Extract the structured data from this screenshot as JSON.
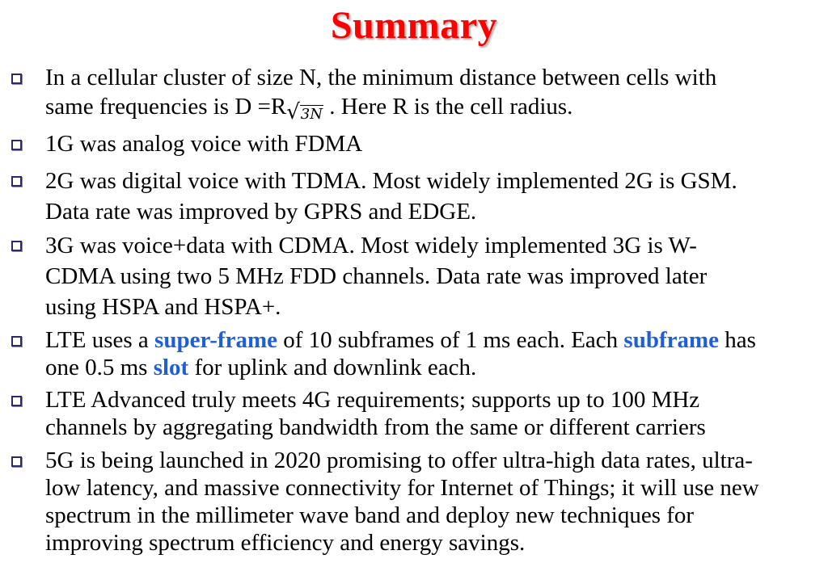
{
  "slide": {
    "title": "Summary",
    "title_color": "#ff0000",
    "highlight_color": "#1f5fd6",
    "bullet_icon": "hollow-square-bullet-icon"
  },
  "bullets": [
    {
      "line1": "In a cellular cluster of size N, the minimum distance between cells with",
      "line2_before": "same frequencies is D =R",
      "formula_radical": "√",
      "formula_radicand": "3N",
      "line2_after": " . Here R is the cell radius."
    },
    {
      "line1": "1G was analog voice with FDMA"
    },
    {
      "line1": "2G was digital voice with TDMA. Most widely implemented 2G is GSM.",
      "line2": "Data rate was improved by GPRS and EDGE."
    },
    {
      "line1": "3G was voice+data with CDMA. Most widely implemented 3G is W-",
      "line2": "CDMA using two 5 MHz FDD channels. Data rate was improved later",
      "line3": "using HSPA and HSPA+."
    },
    {
      "l1_a": "LTE uses a ",
      "l1_hl1": "super-frame",
      "l1_b": " of 10 subframes of 1 ms each. Each ",
      "l1_hl2": "subframe",
      "l1_c": " has",
      "l2_a": "one 0.5 ms ",
      "l2_hl": "slot",
      "l2_b": " for uplink and downlink each."
    },
    {
      "line1": "LTE Advanced truly meets 4G requirements; supports up to 100 MHz",
      "line2": "channels by aggregating bandwidth from the same or different carriers"
    },
    {
      "line1": "5G is being launched in 2020 promising to offer ultra-high data rates, ultra-",
      "line2": "low latency, and massive connectivity for Internet of Things; it will use new",
      "line3": "spectrum in the millimeter wave band and deploy new techniques for",
      "line4": "improving spectrum efficiency and energy savings."
    }
  ]
}
